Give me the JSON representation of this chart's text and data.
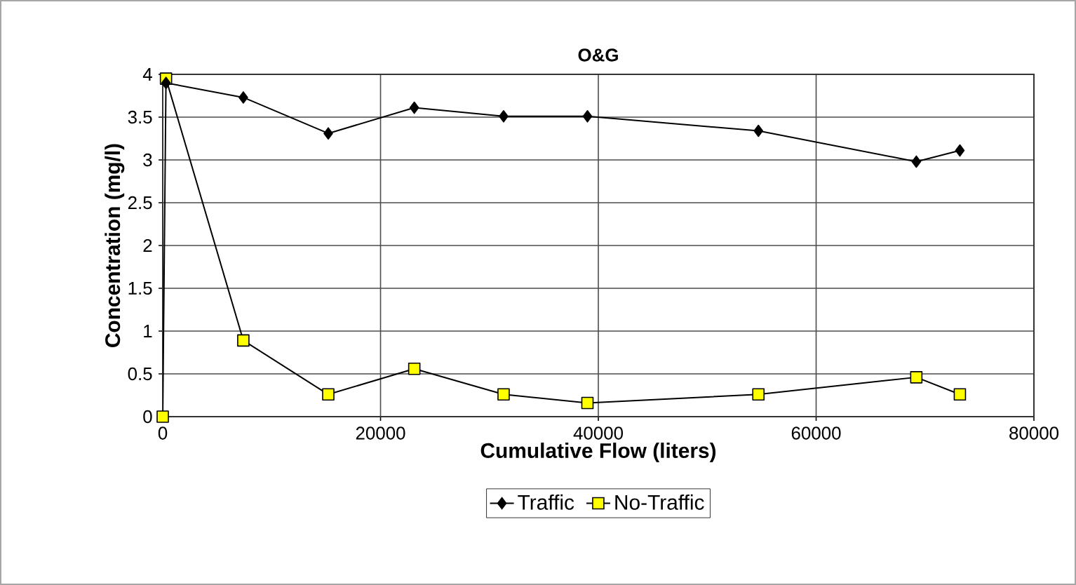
{
  "chart_data": {
    "type": "line",
    "title": "O&G",
    "xlabel": "Cumulative Flow (liters)",
    "ylabel": "Concentration (mg/l)",
    "xlim": [
      0,
      80000
    ],
    "xticks": [
      0,
      20000,
      40000,
      60000,
      80000
    ],
    "ylim": [
      0,
      4
    ],
    "yticks": [
      0,
      0.5,
      1,
      1.5,
      2,
      2.5,
      3,
      3.5,
      4
    ],
    "grid": true,
    "legend": "bottom",
    "line_style": "solid",
    "series": [
      {
        "name": "Traffic",
        "color": "#000000",
        "marker": "diamond",
        "x": [
          300,
          7400,
          15200,
          23100,
          31300,
          39000,
          54700,
          69200,
          73200
        ],
        "values": [
          3.9,
          3.73,
          3.31,
          3.61,
          3.51,
          3.51,
          3.34,
          2.98,
          3.11
        ]
      },
      {
        "name": "No-Traffic",
        "color": "#ffff00",
        "marker": "square",
        "x": [
          0,
          300,
          7400,
          15200,
          23100,
          31300,
          39000,
          54700,
          69200,
          73200
        ],
        "values": [
          0,
          3.95,
          0.89,
          0.26,
          0.56,
          0.26,
          0.16,
          0.26,
          0.46,
          0.26
        ]
      }
    ]
  }
}
